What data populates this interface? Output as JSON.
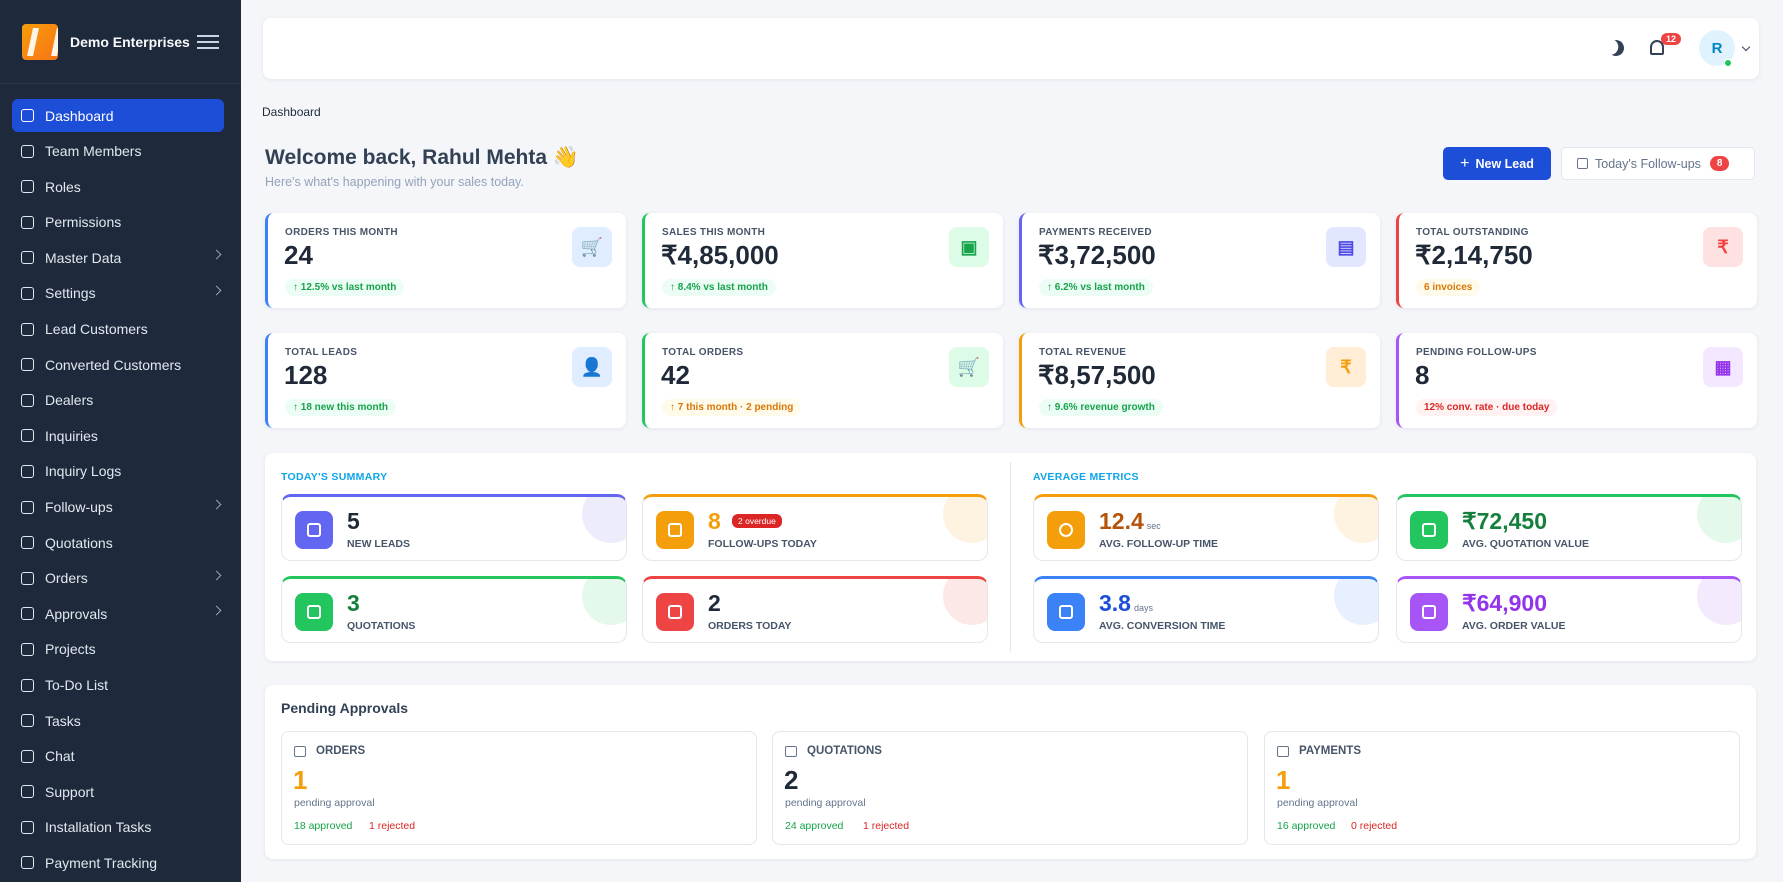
{
  "brand": {
    "name": "Demo Enterprises"
  },
  "sidebar": {
    "items": [
      {
        "label": "Dashboard"
      },
      {
        "label": "Team Members"
      },
      {
        "label": "Roles"
      },
      {
        "label": "Permissions"
      },
      {
        "label": "Master Data"
      },
      {
        "label": "Settings"
      },
      {
        "label": "Lead Customers"
      },
      {
        "label": "Converted Customers"
      },
      {
        "label": "Dealers"
      },
      {
        "label": "Inquiries"
      },
      {
        "label": "Inquiry Logs"
      },
      {
        "label": "Follow-ups"
      },
      {
        "label": "Quotations"
      },
      {
        "label": "Orders"
      },
      {
        "label": "Approvals"
      },
      {
        "label": "Projects"
      },
      {
        "label": "To-Do List"
      },
      {
        "label": "Tasks"
      },
      {
        "label": "Chat"
      },
      {
        "label": "Support"
      },
      {
        "label": "Installation Tasks"
      },
      {
        "label": "Payment Tracking"
      }
    ]
  },
  "header": {
    "notification_count": "12",
    "avatar_initial": "R"
  },
  "breadcrumb": "Dashboard",
  "welcome": {
    "title": "Welcome back, Rahul Mehta 👋",
    "subtitle": "Here's what's happening with your sales today."
  },
  "actions": {
    "new_lead": "New Lead",
    "follow_ups": "Today's Follow-ups",
    "follow_ups_count": "8"
  },
  "stats": [
    {
      "label": "ORDERS THIS MONTH",
      "value": "24",
      "note": "↑ 12.5% vs last month",
      "icon": "cart-icon"
    },
    {
      "label": "SALES THIS MONTH",
      "value": "₹4,85,000",
      "note": "↑ 8.4% vs last month",
      "icon": "cash-icon"
    },
    {
      "label": "PAYMENTS RECEIVED",
      "value": "₹3,72,500",
      "note": "↑ 6.2% vs last month",
      "icon": "wallet-icon"
    },
    {
      "label": "TOTAL OUTSTANDING",
      "value": "₹2,14,750",
      "note": "6 invoices",
      "icon": "rupee-icon"
    },
    {
      "label": "TOTAL LEADS",
      "value": "128",
      "note": "↑ 18 new this month",
      "icon": "user-plus-icon"
    },
    {
      "label": "TOTAL ORDERS",
      "value": "42",
      "note": "↑ 7 this month · 2 pending",
      "icon": "cart-icon"
    },
    {
      "label": "TOTAL REVENUE",
      "value": "₹8,57,500",
      "note": "↑ 9.6% revenue growth",
      "icon": "rupee-icon"
    },
    {
      "label": "PENDING FOLLOW-UPS",
      "value": "8",
      "note": "12% conv. rate · due today",
      "icon": "calendar-icon"
    }
  ],
  "todays_summary": {
    "title": "TODAY'S SUMMARY",
    "items": [
      {
        "value": "5",
        "label": "NEW LEADS"
      },
      {
        "value": "8",
        "label": "FOLLOW-UPS TODAY",
        "tag": "2 overdue"
      },
      {
        "value": "3",
        "label": "QUOTATIONS"
      },
      {
        "value": "2",
        "label": "ORDERS TODAY"
      }
    ]
  },
  "average_metrics": {
    "title": "AVERAGE METRICS",
    "items": [
      {
        "value": "12.4",
        "unit": "sec",
        "label": "AVG. FOLLOW-UP TIME"
      },
      {
        "value": "₹72,450",
        "label": "AVG. QUOTATION VALUE"
      },
      {
        "value": "3.8",
        "unit": "days",
        "label": "AVG. CONVERSION TIME"
      },
      {
        "value": "₹64,900",
        "label": "AVG. ORDER VALUE"
      }
    ]
  },
  "pending_approvals": {
    "title": "Pending Approvals",
    "cards": [
      {
        "title": "ORDERS",
        "count": "1",
        "sub": "pending approval",
        "approved": "18 approved",
        "rejected": "1 rejected"
      },
      {
        "title": "QUOTATIONS",
        "count": "2",
        "sub": "pending approval",
        "approved": "24 approved",
        "rejected": "1 rejected"
      },
      {
        "title": "PAYMENTS",
        "count": "1",
        "sub": "pending approval",
        "approved": "16 approved",
        "rejected": "0 rejected"
      }
    ]
  },
  "colors": {
    "sidebar_bg": "#1e293b",
    "primary": "#1d4ed8",
    "blue": "#3b82f6",
    "green": "#22c55e",
    "indigo": "#6366f1",
    "red": "#ef4444",
    "orange": "#f59e0b",
    "purple": "#a855f7"
  }
}
